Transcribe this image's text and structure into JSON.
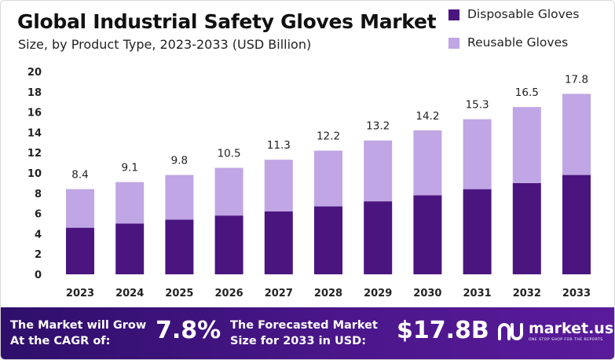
{
  "chart_data": {
    "type": "bar",
    "stacked": true,
    "title": "Global Industrial Safety Gloves Market",
    "subtitle": "Size, by Product Type, 2023-2033 (USD Billion)",
    "categories": [
      "2023",
      "2024",
      "2025",
      "2026",
      "2027",
      "2028",
      "2029",
      "2030",
      "2031",
      "2032",
      "2033"
    ],
    "series": [
      {
        "name": "Disposable Gloves",
        "color": "#4b1580",
        "values": [
          4.6,
          5.0,
          5.4,
          5.8,
          6.2,
          6.7,
          7.2,
          7.8,
          8.4,
          9.0,
          9.8
        ]
      },
      {
        "name": "Reusable Gloves",
        "color": "#c0a6e4",
        "values": [
          3.8,
          4.1,
          4.4,
          4.7,
          5.1,
          5.5,
          6.0,
          6.4,
          6.9,
          7.5,
          8.0
        ]
      }
    ],
    "totals": [
      "8.4",
      "9.1",
      "9.8",
      "10.5",
      "11.3",
      "12.2",
      "13.2",
      "14.2",
      "15.3",
      "16.5",
      "17.8"
    ],
    "yticks": [
      "0",
      "2",
      "4",
      "6",
      "8",
      "10",
      "12",
      "14",
      "16",
      "18",
      "20"
    ],
    "ylim": [
      0,
      20
    ],
    "xlabel": "",
    "ylabel": "",
    "grid": false,
    "legend_position": "top-right"
  },
  "footer": {
    "cagr_line1": "The Market will Grow",
    "cagr_line2": "At the CAGR of:",
    "cagr_value": "7.8%",
    "forecast_line1": "The Forecasted Market",
    "forecast_line2": "Size for 2033 in USD:",
    "forecast_value": "$17.8B",
    "logo_name": "market.us",
    "logo_tagline": "ONE STOP SHOP FOR THE REPORTS"
  },
  "colors": {
    "footer_background": "#3b1279",
    "disposable": "#4b1580",
    "reusable": "#c0a6e4"
  },
  "icons": {
    "logo": "market-us-logo-icon"
  }
}
